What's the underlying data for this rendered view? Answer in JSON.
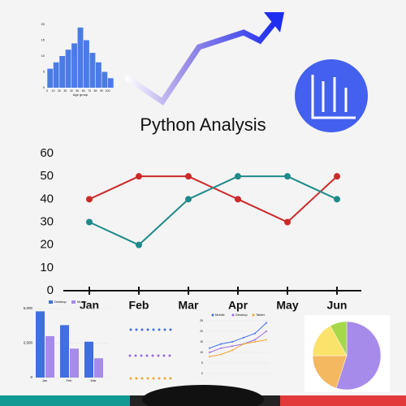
{
  "chart_data": [
    {
      "type": "line",
      "title": "Python Analysis",
      "categories": [
        "Jan",
        "Feb",
        "Mar",
        "Apr",
        "May",
        "Jun"
      ],
      "series": [
        {
          "color": "#cc2a2a",
          "values": [
            40,
            50,
            50,
            40,
            30,
            50
          ]
        },
        {
          "color": "#1f8a8a",
          "values": [
            30,
            20,
            40,
            50,
            50,
            40
          ]
        }
      ],
      "ylim": [
        0,
        60
      ],
      "yticks": [
        0,
        10,
        20,
        30,
        40,
        50,
        60
      ]
    },
    {
      "type": "histogram",
      "xlabel": "Age group",
      "color": "#4a7be8",
      "bins": [
        0,
        10,
        20,
        30,
        40,
        50,
        60,
        70,
        80,
        90,
        100,
        110
      ],
      "values": [
        6,
        8,
        10,
        12,
        14,
        19,
        15,
        11,
        8,
        5,
        3
      ],
      "xlim": [
        0,
        110
      ],
      "xticks": [
        0,
        10,
        20,
        30,
        40,
        50,
        60,
        70,
        80,
        90,
        100
      ],
      "ylim": [
        0,
        20
      ],
      "yticks": [
        0,
        5,
        10,
        15,
        20
      ]
    },
    {
      "type": "grouped-bar",
      "categories": [
        "Jan",
        "Feb",
        "Mar"
      ],
      "series": [
        {
          "name": "Desktop",
          "color": "#3f6fe0",
          "values": [
            4800,
            3800,
            2600
          ]
        },
        {
          "name": "Mobile",
          "color": "#a78bea",
          "values": [
            3000,
            2100,
            1400
          ]
        }
      ],
      "ylim": [
        0,
        5000
      ],
      "yticks": [
        0,
        {
          "value": 2500,
          "label": "2,500"
        },
        {
          "value": 5000,
          "label": "5,000"
        }
      ]
    },
    {
      "type": "small-line",
      "series": [
        {
          "name": "Mobile",
          "color": "#3f6fe0",
          "values": [
            12,
            14,
            15,
            17,
            19,
            24
          ]
        },
        {
          "name": "Desktop",
          "color": "#9b6be0",
          "values": [
            10,
            12,
            13,
            14,
            16,
            20
          ]
        },
        {
          "name": "Tablet",
          "color": "#f0a830",
          "values": [
            8,
            9,
            11,
            14,
            15,
            16
          ]
        }
      ],
      "ylim": [
        0,
        25
      ],
      "yticks": [
        0,
        5,
        10,
        15,
        20,
        25
      ]
    },
    {
      "type": "pie",
      "colors": [
        "#a78bea",
        "#f4b860",
        "#fbe26a",
        "#a6d84a"
      ],
      "values": [
        55,
        20,
        17,
        8
      ]
    }
  ]
}
